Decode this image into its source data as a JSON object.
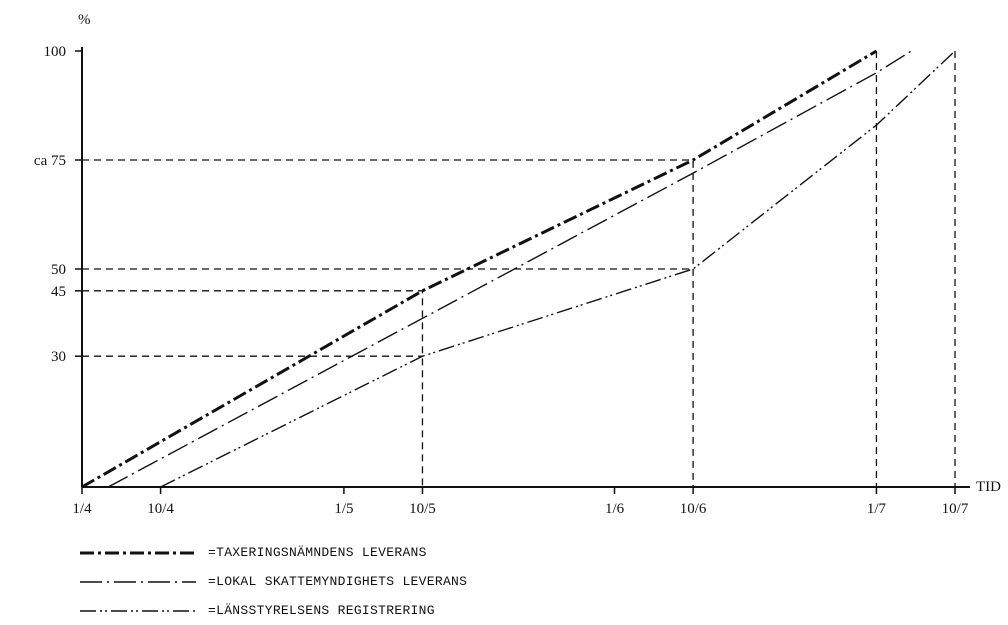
{
  "chart_data": {
    "type": "line",
    "y_unit_label": "%",
    "x_axis_label": "TID",
    "x_ticks": [
      {
        "day": 0,
        "label": "1/4"
      },
      {
        "day": 9,
        "label": "10/4"
      },
      {
        "day": 30,
        "label": "1/5"
      },
      {
        "day": 39,
        "label": "10/5"
      },
      {
        "day": 61,
        "label": "1/6"
      },
      {
        "day": 70,
        "label": "10/6"
      },
      {
        "day": 91,
        "label": "1/7"
      },
      {
        "day": 100,
        "label": "10/7"
      }
    ],
    "y_ticks": [
      {
        "value": 30,
        "label": "30"
      },
      {
        "value": 45,
        "label": "45"
      },
      {
        "value": 50,
        "label": "50"
      },
      {
        "value": 75,
        "label": "ca 75"
      },
      {
        "value": 100,
        "label": "100"
      }
    ],
    "xlim": [
      0,
      100
    ],
    "ylim": [
      0,
      100
    ],
    "reference_lines": [
      {
        "points": [
          [
            0,
            75
          ],
          [
            70,
            75
          ],
          [
            70,
            0
          ]
        ]
      },
      {
        "points": [
          [
            0,
            50
          ],
          [
            70,
            50
          ]
        ]
      },
      {
        "points": [
          [
            0,
            45
          ],
          [
            39,
            45
          ],
          [
            39,
            0
          ]
        ]
      },
      {
        "points": [
          [
            0,
            30
          ],
          [
            39,
            30
          ]
        ]
      },
      {
        "points": [
          [
            91,
            100
          ],
          [
            91,
            0
          ]
        ]
      },
      {
        "points": [
          [
            100,
            100
          ],
          [
            100,
            0
          ]
        ]
      }
    ],
    "series": [
      {
        "name": "TAXERINGSNÄMNDENS LEVERANS",
        "style": "heavy-dash-dot",
        "points": [
          [
            0,
            0
          ],
          [
            39,
            45
          ],
          [
            70,
            75
          ],
          [
            91,
            100
          ]
        ]
      },
      {
        "name": "LOKAL SKATTEMYNDIGHETS LEVERANS",
        "style": "dash-dot",
        "points": [
          [
            3,
            0
          ],
          [
            70,
            72
          ],
          [
            91,
            95
          ],
          [
            95,
            100
          ]
        ]
      },
      {
        "name": "LÄNSSTYRELSENS REGISTRERING",
        "style": "dash-dot-dot",
        "points": [
          [
            9,
            0
          ],
          [
            39,
            30
          ],
          [
            70,
            50
          ],
          [
            91,
            83
          ],
          [
            100,
            100
          ]
        ]
      }
    ],
    "grid": false,
    "legend_position": "bottom-left"
  },
  "legend": {
    "prefix": "= ",
    "items": [
      {
        "label": "TAXERINGSNÄMNDENS LEVERANS"
      },
      {
        "label": "LOKAL SKATTEMYNDIGHETS LEVERANS"
      },
      {
        "label": "LÄNSSTYRELSENS REGISTRERING"
      }
    ]
  },
  "colors": {
    "ink": "#111111",
    "background": "#ffffff"
  }
}
